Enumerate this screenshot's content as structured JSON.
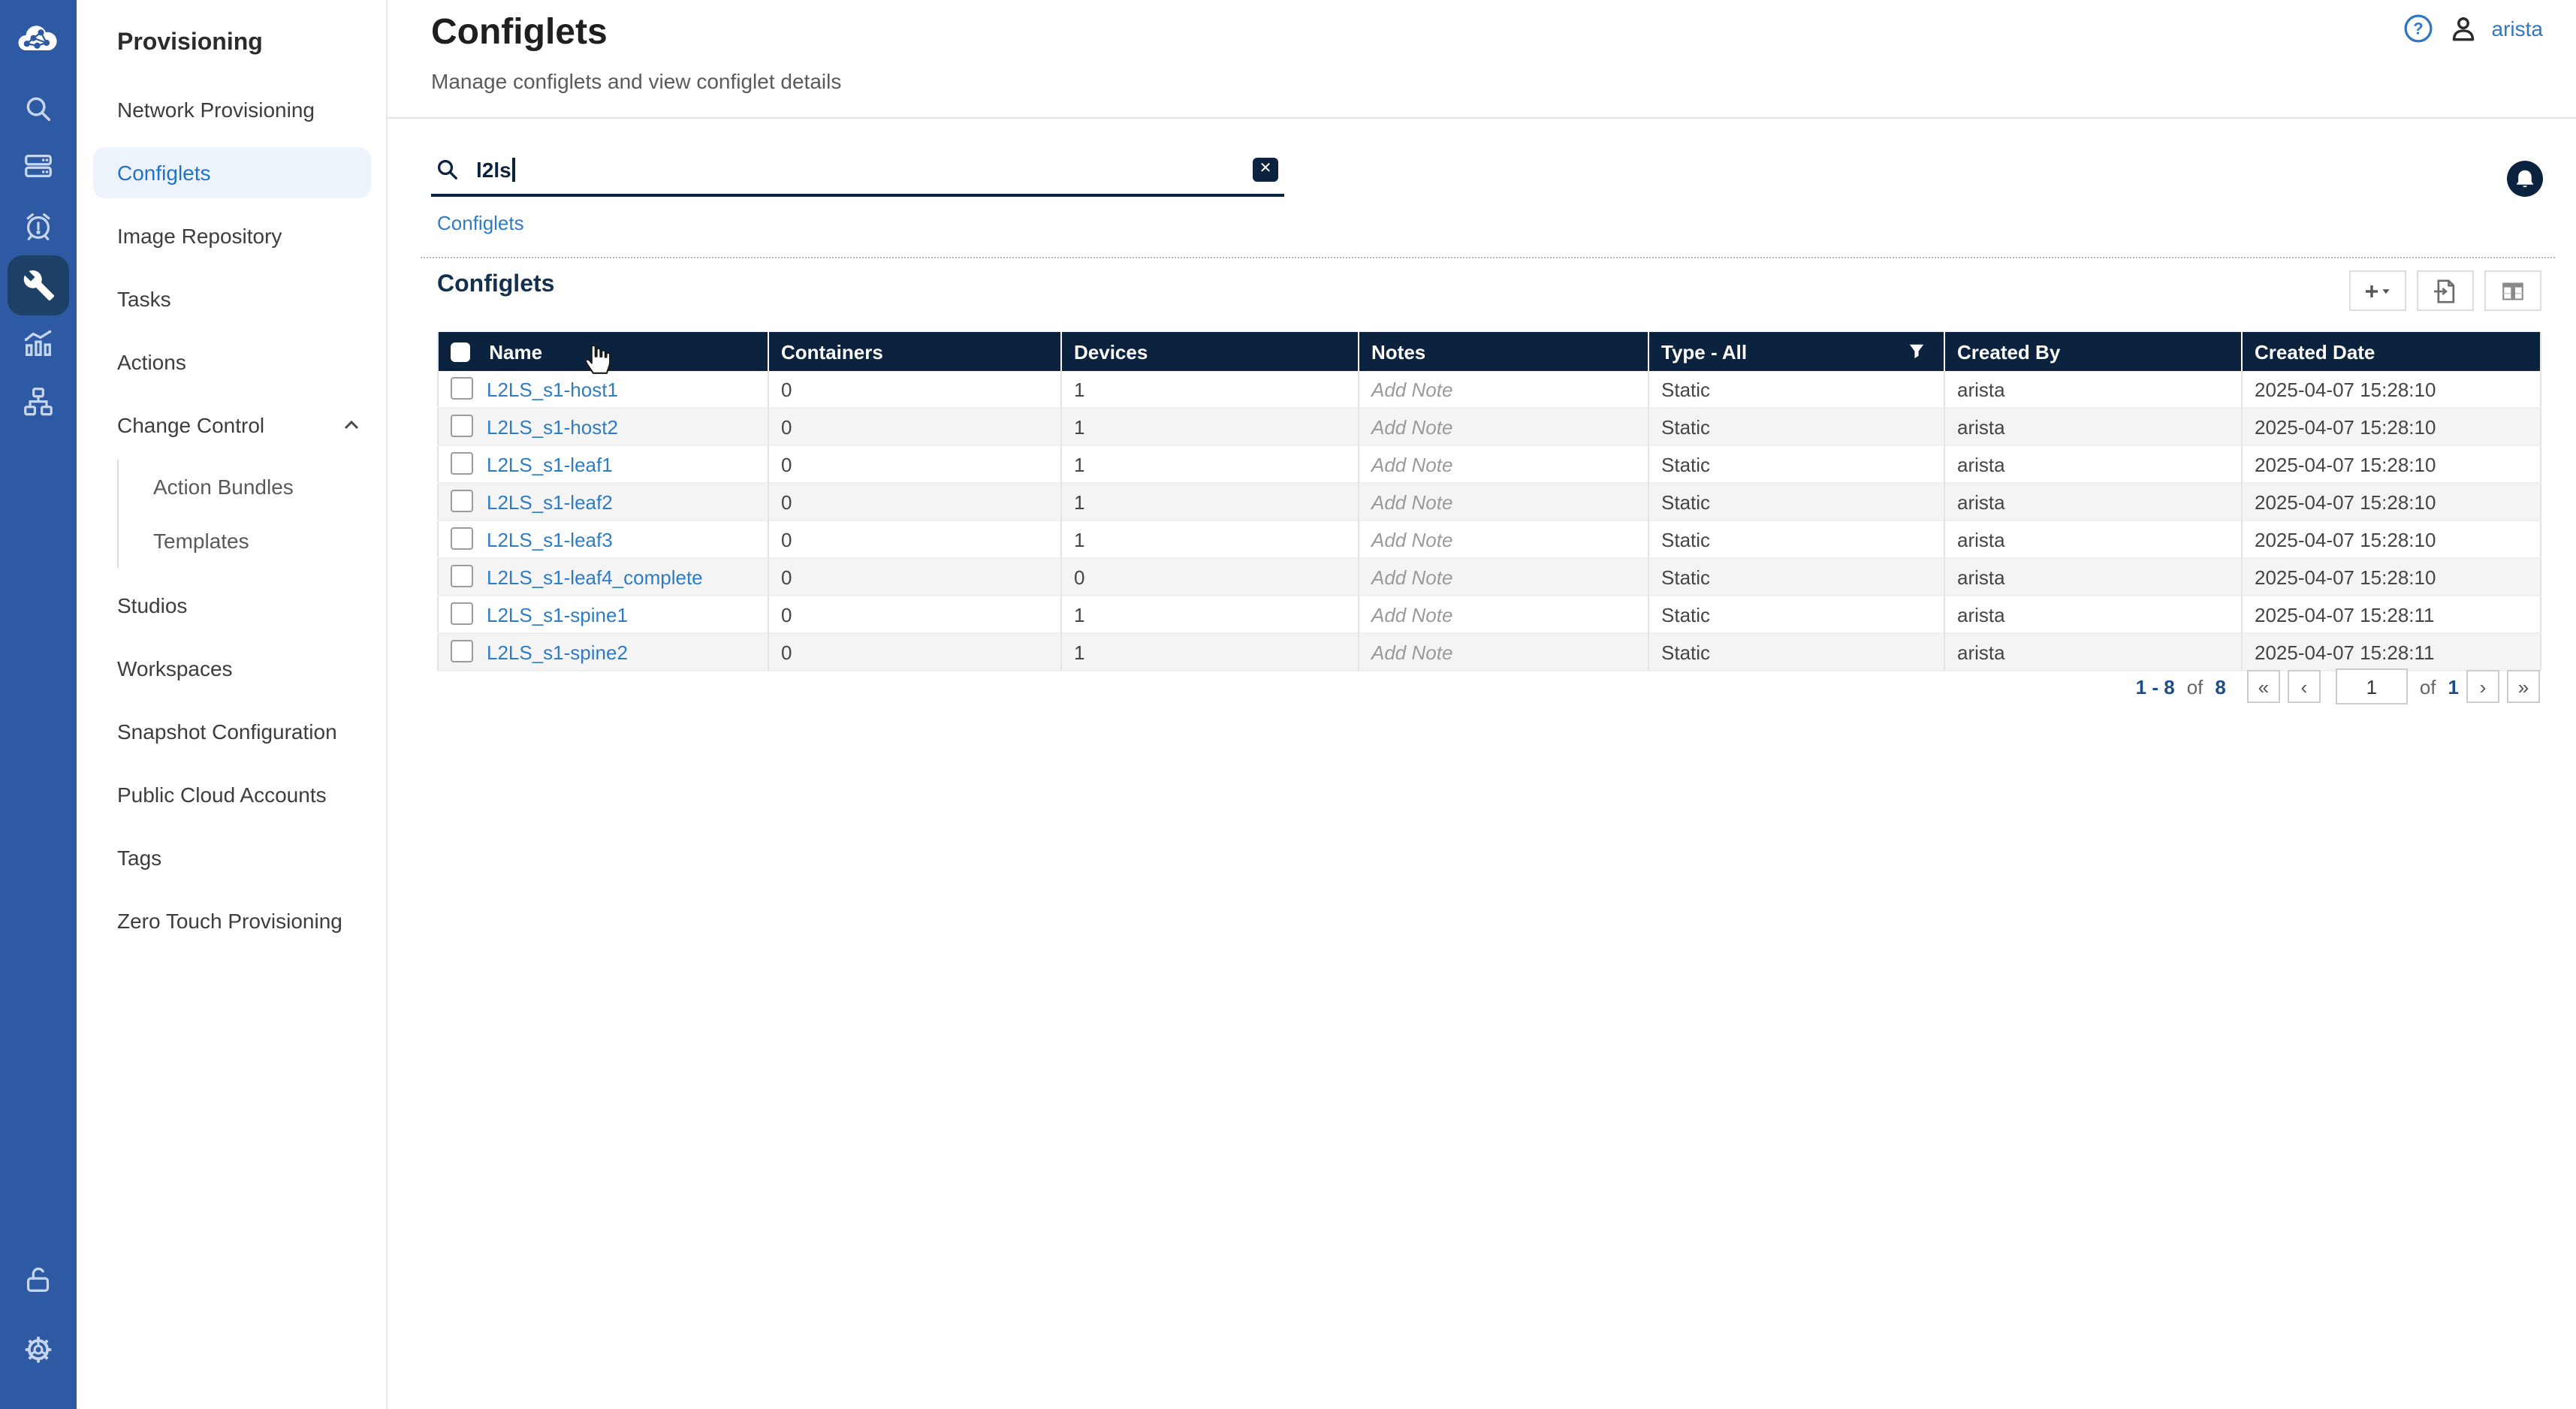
{
  "colors": {
    "navy": "#0c2340",
    "rail_blue": "#2d5aa3",
    "rail_active_bg": "#1d4066",
    "link_blue": "#2e7cc3",
    "active_item_bg": "#edf3fa",
    "user_blue": "#3277c3"
  },
  "rail": {
    "icons": [
      "cloudvision-logo",
      "search",
      "devices",
      "events",
      "provisioning-wrench",
      "dashboards",
      "topology",
      "unlock",
      "settings"
    ],
    "active": "provisioning-wrench"
  },
  "sidebar": {
    "title": "Provisioning",
    "items": [
      {
        "label": "Network Provisioning"
      },
      {
        "label": "Configlets",
        "active": true
      },
      {
        "label": "Image Repository"
      },
      {
        "label": "Tasks"
      },
      {
        "label": "Actions"
      },
      {
        "label": "Change Control",
        "expanded": true
      },
      {
        "label": "Action Bundles",
        "sub": true
      },
      {
        "label": "Templates",
        "sub": true
      },
      {
        "label": "Studios"
      },
      {
        "label": "Workspaces"
      },
      {
        "label": "Snapshot Configuration"
      },
      {
        "label": "Public Cloud Accounts"
      },
      {
        "label": "Tags"
      },
      {
        "label": "Zero Touch Provisioning"
      }
    ]
  },
  "header": {
    "title": "Configlets",
    "subtitle": "Manage configlets and view configlet details",
    "user": "arista",
    "help_icon": "?"
  },
  "search": {
    "value": "l2ls",
    "clear_icon": "✕"
  },
  "breadcrumb": [
    "Configlets"
  ],
  "section": {
    "title": "Configlets",
    "toolbar": [
      "add-configlet",
      "export",
      "customize-columns"
    ]
  },
  "table": {
    "columns": [
      "Name",
      "Containers",
      "Devices",
      "Notes",
      "Type - All",
      "Created By",
      "Created Date"
    ],
    "rows": [
      {
        "name": "L2LS_s1-host1",
        "containers": "0",
        "devices": "1",
        "notes": "Add Note",
        "type": "Static",
        "created_by": "arista",
        "created_date": "2025-04-07 15:28:10"
      },
      {
        "name": "L2LS_s1-host2",
        "containers": "0",
        "devices": "1",
        "notes": "Add Note",
        "type": "Static",
        "created_by": "arista",
        "created_date": "2025-04-07 15:28:10"
      },
      {
        "name": "L2LS_s1-leaf1",
        "containers": "0",
        "devices": "1",
        "notes": "Add Note",
        "type": "Static",
        "created_by": "arista",
        "created_date": "2025-04-07 15:28:10"
      },
      {
        "name": "L2LS_s1-leaf2",
        "containers": "0",
        "devices": "1",
        "notes": "Add Note",
        "type": "Static",
        "created_by": "arista",
        "created_date": "2025-04-07 15:28:10"
      },
      {
        "name": "L2LS_s1-leaf3",
        "containers": "0",
        "devices": "1",
        "notes": "Add Note",
        "type": "Static",
        "created_by": "arista",
        "created_date": "2025-04-07 15:28:10"
      },
      {
        "name": "L2LS_s1-leaf4_complete",
        "containers": "0",
        "devices": "0",
        "notes": "Add Note",
        "type": "Static",
        "created_by": "arista",
        "created_date": "2025-04-07 15:28:10"
      },
      {
        "name": "L2LS_s1-spine1",
        "containers": "0",
        "devices": "1",
        "notes": "Add Note",
        "type": "Static",
        "created_by": "arista",
        "created_date": "2025-04-07 15:28:11"
      },
      {
        "name": "L2LS_s1-spine2",
        "containers": "0",
        "devices": "1",
        "notes": "Add Note",
        "type": "Static",
        "created_by": "arista",
        "created_date": "2025-04-07 15:28:11"
      }
    ]
  },
  "pagination": {
    "range": "1 - 8",
    "of_label": "of",
    "total": "8",
    "page": "1",
    "pages": "1",
    "first_icon": "«",
    "prev_icon": "‹",
    "next_icon": "›",
    "last_icon": "»"
  }
}
